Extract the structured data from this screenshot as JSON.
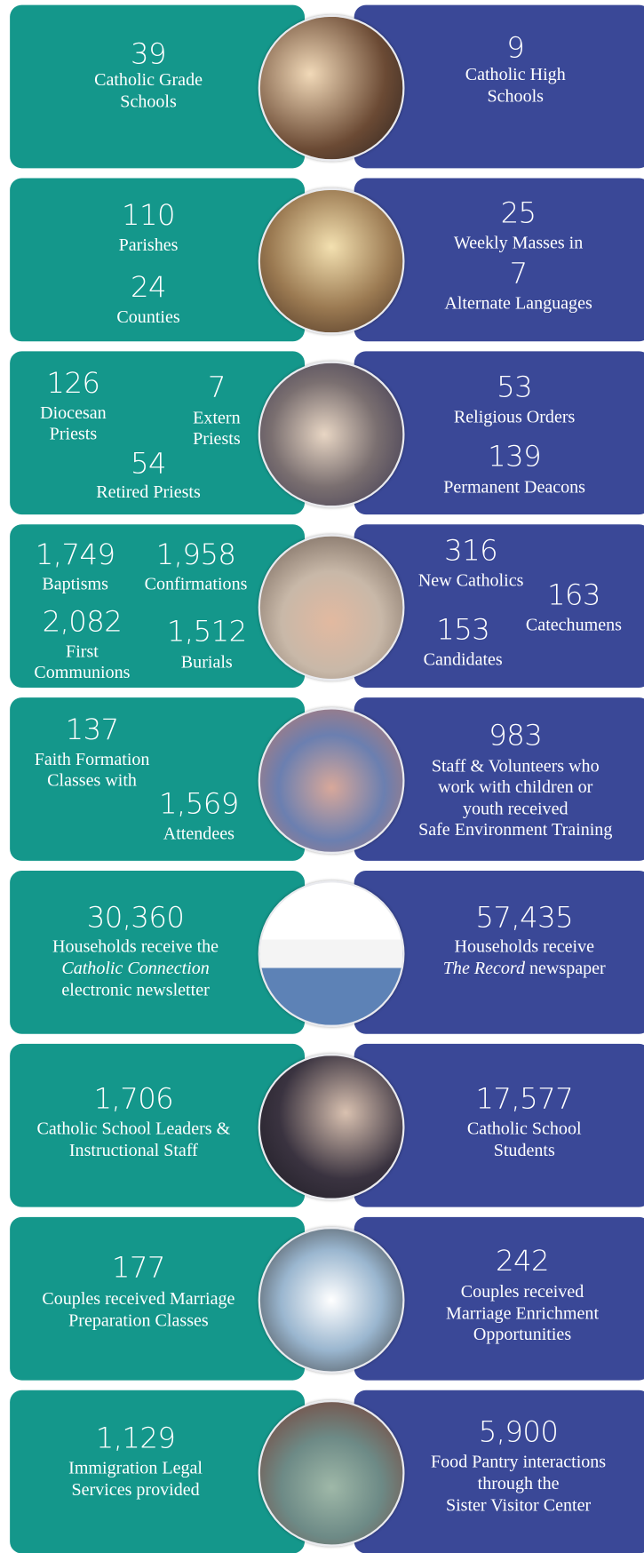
{
  "rows": [
    {
      "left": [
        {
          "number": "39",
          "lines": [
            "Catholic Grade",
            "Schools"
          ]
        }
      ],
      "right": [
        {
          "number": "9",
          "lines": [
            "Catholic High",
            "Schools"
          ]
        }
      ]
    },
    {
      "left": [
        {
          "number": "110",
          "lines": [
            "Parishes"
          ]
        },
        {
          "number": "24",
          "lines": [
            "Counties"
          ]
        }
      ],
      "right": [
        {
          "number": "25",
          "lines": [
            "Weekly Masses in"
          ]
        },
        {
          "number": "7",
          "lines": [
            "Alternate Languages"
          ]
        }
      ]
    },
    {
      "left": [
        {
          "number": "126",
          "lines": [
            "Diocesan",
            "Priests"
          ]
        },
        {
          "number": "7",
          "lines": [
            "Extern",
            "Priests"
          ]
        },
        {
          "number": "54",
          "lines": [
            "Retired Priests"
          ]
        }
      ],
      "right": [
        {
          "number": "53",
          "lines": [
            "Religious Orders"
          ]
        },
        {
          "number": "139",
          "lines": [
            "Permanent Deacons"
          ]
        }
      ]
    },
    {
      "left": [
        {
          "number": "1,749",
          "lines": [
            "Baptisms"
          ]
        },
        {
          "number": "1,958",
          "lines": [
            "Confirmations"
          ]
        },
        {
          "number": "2,082",
          "lines": [
            "First",
            "Communions"
          ]
        },
        {
          "number": "1,512",
          "lines": [
            "Burials"
          ]
        }
      ],
      "right": [
        {
          "number": "316",
          "lines": [
            "New Catholics"
          ]
        },
        {
          "number": "163",
          "lines": [
            "Catechumens"
          ]
        },
        {
          "number": "153",
          "lines": [
            "Candidates"
          ]
        }
      ]
    },
    {
      "left": [
        {
          "number": "137",
          "lines": [
            "Faith Formation",
            "Classes with"
          ]
        },
        {
          "number": "1,569",
          "lines": [
            "Attendees"
          ]
        }
      ],
      "right": [
        {
          "number": "983",
          "lines": [
            "Staff & Volunteers who",
            "work with children or",
            "youth received",
            "Safe Environment Training"
          ]
        }
      ]
    },
    {
      "left": [
        {
          "number": "30,360",
          "lines": [
            "Households receive the",
            [
              {
                "text": "Catholic Connection",
                "italic": true
              }
            ],
            "electronic newsletter"
          ]
        }
      ],
      "right": [
        {
          "number": "57,435",
          "lines": [
            "Households receive",
            [
              {
                "text": "The Record",
                "italic": true
              },
              "newspaper"
            ]
          ]
        }
      ]
    },
    {
      "left": [
        {
          "number": "1,706",
          "lines": [
            "Catholic School Leaders &",
            "Instructional Staff"
          ]
        }
      ],
      "right": [
        {
          "number": "17,577",
          "lines": [
            "Catholic School",
            "Students"
          ]
        }
      ]
    },
    {
      "left": [
        {
          "number": "177",
          "lines": [
            "Couples received Marriage",
            "Preparation Classes"
          ]
        }
      ],
      "right": [
        {
          "number": "242",
          "lines": [
            "Couples received",
            "Marriage Enrichment",
            "Opportunities"
          ]
        }
      ]
    },
    {
      "left": [
        {
          "number": "1,129",
          "lines": [
            "Immigration Legal",
            "Services provided"
          ]
        }
      ],
      "right": [
        {
          "number": "5,900",
          "lines": [
            "Food Pantry interactions",
            "through the",
            "Sister Visitor Center"
          ]
        }
      ]
    }
  ]
}
